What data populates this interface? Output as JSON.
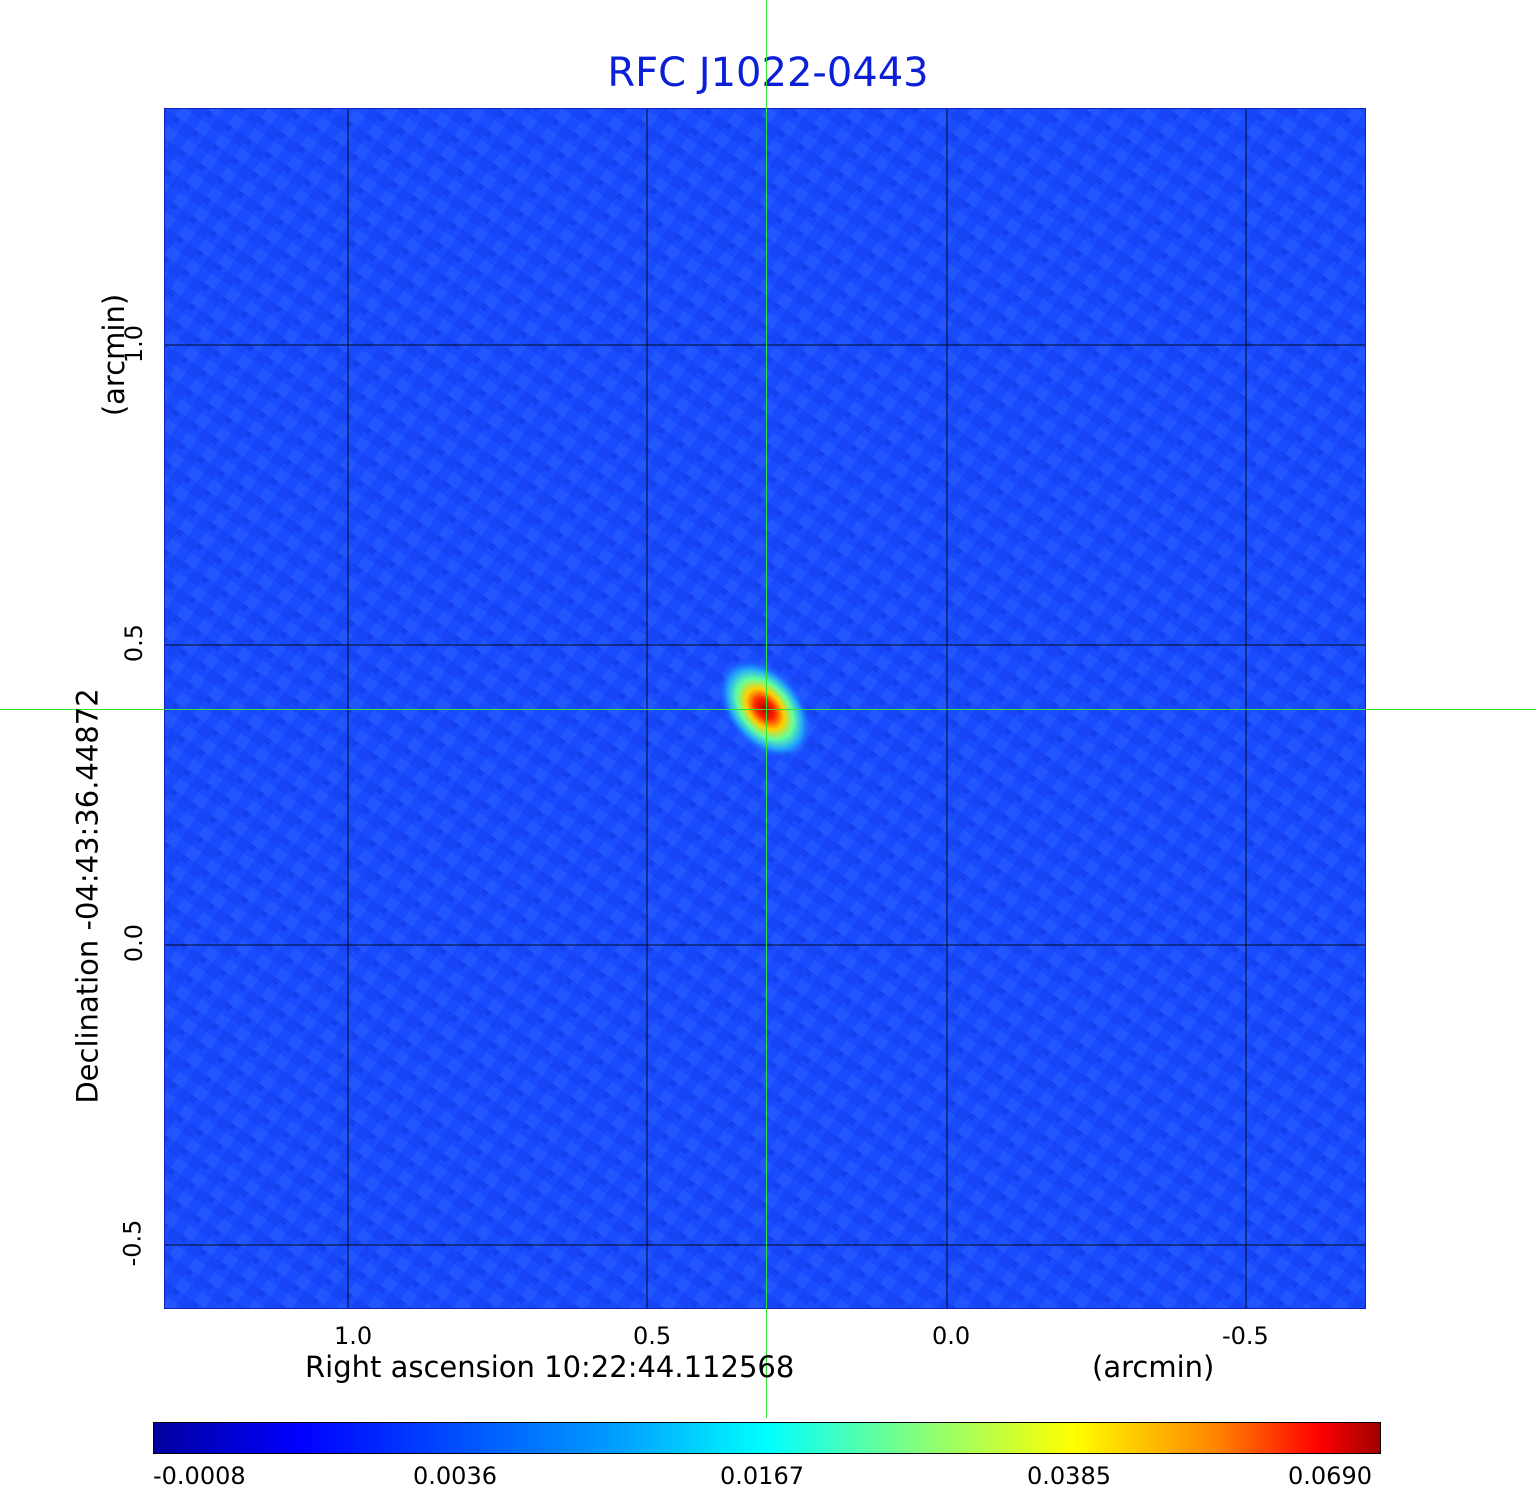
{
  "title": "RFC J1022-0443",
  "x_axis": {
    "label": "Right ascension  10:22:44.112568",
    "unit": "(arcmin)",
    "ticks": [
      "1.0",
      "0.5",
      "0.0",
      "-0.5"
    ]
  },
  "y_axis": {
    "label": "Declination  -04:43:36.44872",
    "unit": "(arcmin)",
    "ticks": [
      "1.0",
      "0.5",
      "0.0",
      "-0.5"
    ]
  },
  "colorbar": {
    "ticks": [
      "-0.0008",
      "0.0036",
      "0.0167",
      "0.0385",
      "0.0690"
    ]
  },
  "colors": {
    "title": "#0a1fd6",
    "background_map": "#1a4cff",
    "crosshair": "#33e033",
    "grid": "#000000"
  }
}
